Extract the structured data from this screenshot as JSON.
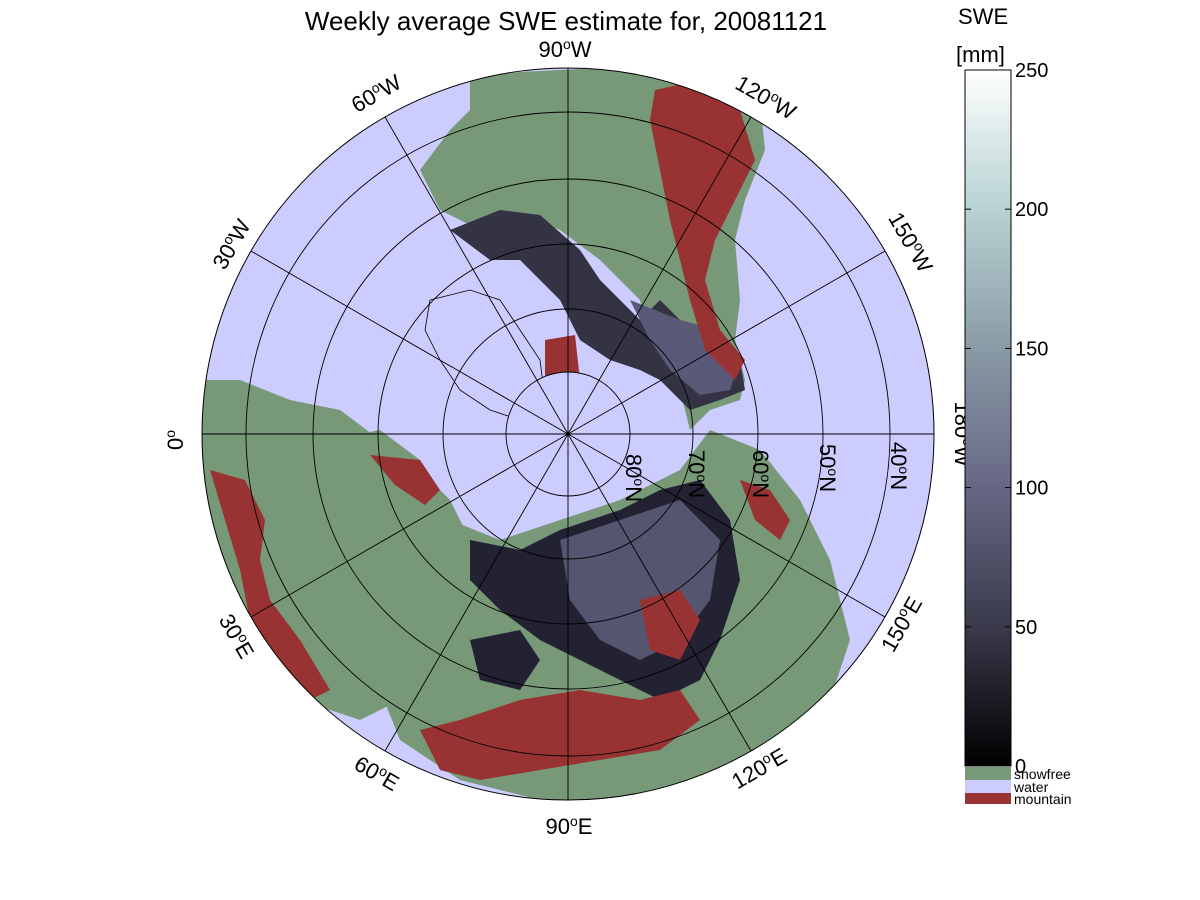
{
  "title": "Weekly average SWE estimate for, 20081121",
  "colorbar": {
    "unit_line1": "SWE",
    "unit_line2": "[mm]",
    "range": [
      0,
      250
    ],
    "ticks": [
      "0",
      "50",
      "100",
      "150",
      "200",
      "250"
    ],
    "categories": [
      {
        "label": "snowfree",
        "color": "#779977"
      },
      {
        "label": "water",
        "color": "#ccccff"
      },
      {
        "label": "mountain",
        "color": "#993333"
      }
    ],
    "gradient_colors": [
      "#000000",
      "#3a3a4c",
      "#676784",
      "#8a9aa6",
      "#b7d2d2",
      "#ffffff"
    ]
  },
  "map": {
    "projection": "north polar stereographic",
    "latitude_labels": [
      {
        "deg": "80",
        "hemi": "N"
      },
      {
        "deg": "70",
        "hemi": "N"
      },
      {
        "deg": "60",
        "hemi": "N"
      },
      {
        "deg": "50",
        "hemi": "N"
      },
      {
        "deg": "40",
        "hemi": "N"
      }
    ],
    "longitude_labels": [
      {
        "deg": "90",
        "hemi": "W"
      },
      {
        "deg": "120",
        "hemi": "W"
      },
      {
        "deg": "150",
        "hemi": "W"
      },
      {
        "deg": "180",
        "hemi": "W"
      },
      {
        "deg": "150",
        "hemi": "E"
      },
      {
        "deg": "120",
        "hemi": "E"
      },
      {
        "deg": "90",
        "hemi": "E"
      },
      {
        "deg": "60",
        "hemi": "E"
      },
      {
        "deg": "30",
        "hemi": "E"
      },
      {
        "deg": "0",
        "hemi": ""
      },
      {
        "deg": "30",
        "hemi": "W"
      },
      {
        "deg": "60",
        "hemi": "W"
      }
    ],
    "colors": {
      "water": "#ccccff",
      "snowfree": "#779977",
      "mountain": "#993333",
      "swe_low": "#222233",
      "swe_mid": "#555570"
    }
  }
}
